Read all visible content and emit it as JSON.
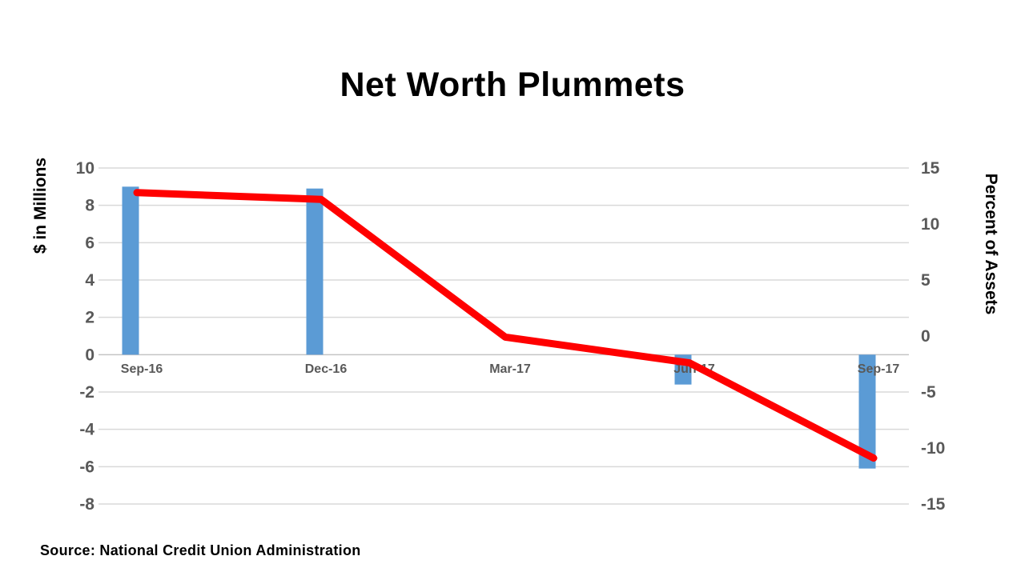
{
  "chart": {
    "title": "Net Worth Plummets",
    "source": "Source: National Credit Union Administration",
    "colors": {
      "bar": "#5B9BD5",
      "line": "#FF0000",
      "gridline": "#D9D9D9",
      "zero_axis": "#C4C4C4",
      "tick_label": "#595959",
      "title": "#000000"
    }
  },
  "chart_data": {
    "type": "combo-bar-line",
    "title": "Net Worth Plummets",
    "categories": [
      "Sep-16",
      "Dec-16",
      "Mar-17",
      "Jun-17",
      "Sep-17"
    ],
    "series": [
      {
        "name": "$ in Millions",
        "type": "bar",
        "axis": "left",
        "values": [
          9.0,
          8.9,
          0,
          -1.6,
          -6.1
        ]
      },
      {
        "name": "Percent of Assets",
        "type": "line",
        "axis": "right",
        "values": [
          12.8,
          12.2,
          -0.1,
          -2.4,
          -10.9
        ]
      }
    ],
    "left_axis": {
      "title": "$ in Millions",
      "min": -8,
      "max": 10,
      "step": 2,
      "ticks": [
        10,
        8,
        6,
        4,
        2,
        0,
        -2,
        -4,
        -6,
        -8
      ]
    },
    "right_axis": {
      "title": "Percent of Assets",
      "min": -15,
      "max": 15,
      "step": 5,
      "ticks": [
        15,
        10,
        5,
        0,
        -5,
        -10,
        -15
      ]
    },
    "grid": true,
    "legend": "none"
  }
}
